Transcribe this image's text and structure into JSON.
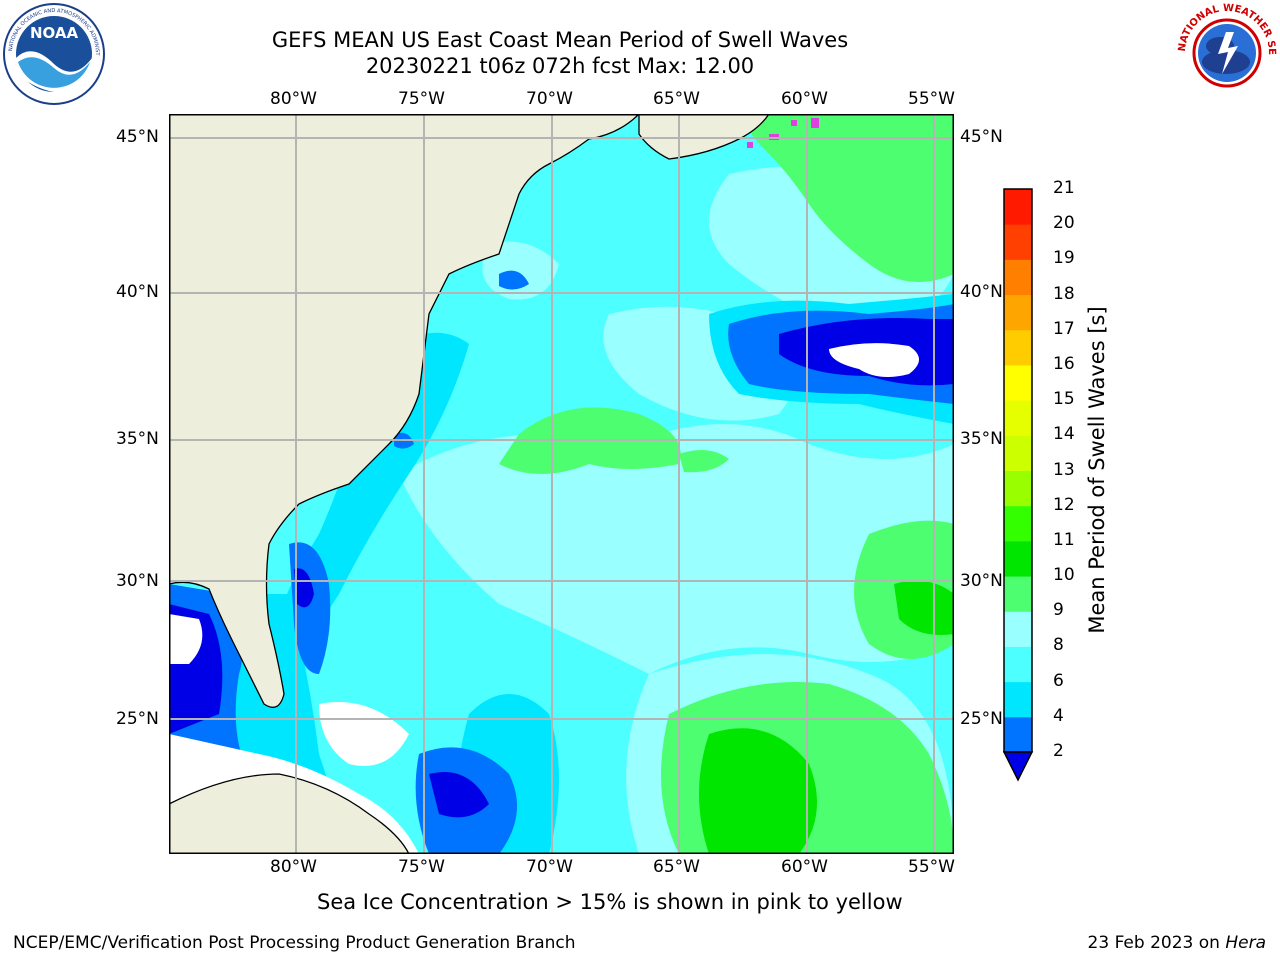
{
  "header": {
    "title_line1": "GEFS MEAN US East Coast Mean Period of Swell Waves",
    "title_line2": "20230221 t06z 072h fcst   Max: 12.00"
  },
  "logos": {
    "noaa_text": "NOAA",
    "noaa_ring": "NATIONAL OCEANIC AND ATMOSPHERIC ADMINISTRATION · U.S. DEPARTMENT OF COMMERCE",
    "nws_ring": "NATIONAL WEATHER SERVICE"
  },
  "map": {
    "lon_labels": [
      "80°W",
      "75°W",
      "70°W",
      "65°W",
      "60°W",
      "55°W"
    ],
    "lat_labels": [
      "45°N",
      "40°N",
      "35°N",
      "30°N",
      "25°N"
    ],
    "region": {
      "lon_min": -85,
      "lon_max": -54.5,
      "lat_min": 20.5,
      "lat_max": 45.8
    },
    "grid": true,
    "colors": {
      "land": "#eeeedd",
      "grid": "#b4b4b4",
      "coast": "#000000",
      "ice": "#e040e0"
    }
  },
  "colorbar": {
    "title": "Mean Period of Swell Waves [s]",
    "labels": [
      "2",
      "4",
      "6",
      "8",
      "9",
      "10",
      "11",
      "12",
      "13",
      "14",
      "15",
      "16",
      "17",
      "18",
      "19",
      "20",
      "21"
    ],
    "colors": [
      "#0000e6",
      "#0073ff",
      "#00e6ff",
      "#4dffff",
      "#99ffff",
      "#4dff70",
      "#00e600",
      "#33ff00",
      "#99ff00",
      "#ccff00",
      "#e6ff00",
      "#ffff00",
      "#ffcc00",
      "#ffa500",
      "#ff8000",
      "#ff4000",
      "#ff1a00",
      "#ff0000"
    ],
    "extend": "min"
  },
  "footer": {
    "note": "Sea Ice Concentration > 15% is shown in pink to yellow",
    "left": "NCEP/EMC/Verification Post Processing Product Generation Branch",
    "date": "23 Feb 2023 on",
    "host": "Hera"
  }
}
